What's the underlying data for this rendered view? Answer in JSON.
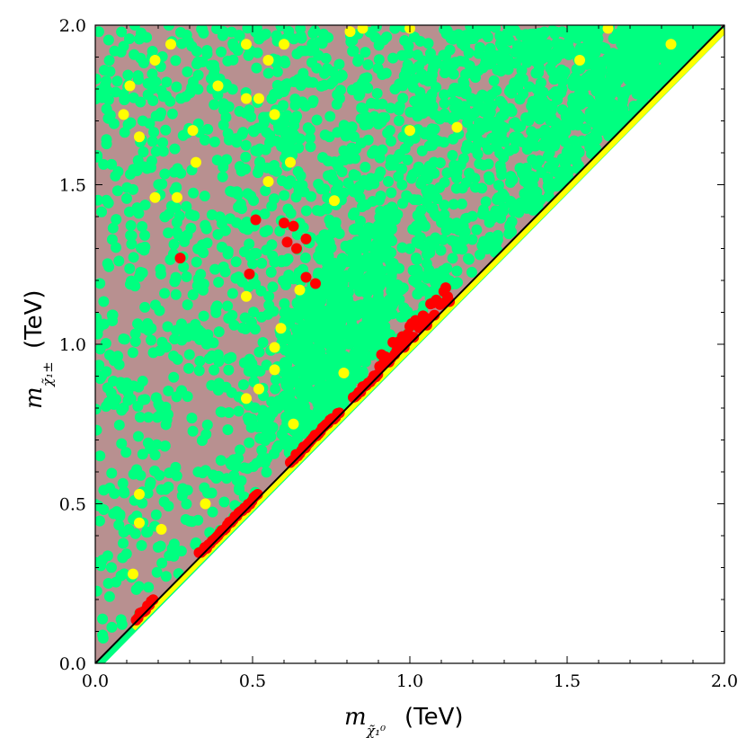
{
  "chart_data": {
    "type": "scatter",
    "title": "",
    "xlabel": {
      "symbol": "m",
      "subscript": "χ̃₁⁰",
      "unit": "(TeV)"
    },
    "ylabel": {
      "symbol": "m",
      "subscript": "χ̃₁±",
      "unit": "(TeV)"
    },
    "xlim": [
      0.0,
      2.0
    ],
    "ylim": [
      0.0,
      2.0
    ],
    "xticks": [
      "0.0",
      "0.5",
      "1.0",
      "1.5",
      "2.0"
    ],
    "yticks": [
      "0.0",
      "0.5",
      "1.0",
      "1.5",
      "2.0"
    ],
    "grid": false,
    "legend": "none",
    "colors": {
      "background_band": "#b89090",
      "allowed_points": "#00ff80",
      "yellow_points": "#ffff00",
      "red_points": "#ff0000",
      "diagonal_line": "#000000"
    },
    "diagonal": {
      "x": [
        0.0,
        2.0
      ],
      "y": [
        0.0,
        2.0
      ]
    },
    "series": [
      {
        "name": "red points (off-diagonal)",
        "color": "#ff0000",
        "points": [
          [
            0.27,
            1.27
          ],
          [
            0.51,
            1.39
          ],
          [
            0.49,
            1.22
          ],
          [
            0.6,
            1.38
          ],
          [
            0.63,
            1.37
          ],
          [
            0.61,
            1.32
          ],
          [
            0.67,
            1.33
          ],
          [
            0.64,
            1.3
          ],
          [
            0.67,
            1.21
          ],
          [
            0.7,
            1.19
          ]
        ]
      },
      {
        "name": "yellow points (off-diagonal)",
        "color": "#ffff00",
        "points": [
          [
            0.24,
            1.94
          ],
          [
            0.48,
            1.94
          ],
          [
            0.55,
            1.89
          ],
          [
            0.6,
            1.94
          ],
          [
            0.85,
            1.99
          ],
          [
            0.81,
            1.98
          ],
          [
            1.0,
            1.99
          ],
          [
            1.63,
            1.99
          ],
          [
            1.83,
            1.94
          ],
          [
            0.19,
            1.89
          ],
          [
            0.11,
            1.81
          ],
          [
            0.39,
            1.81
          ],
          [
            0.48,
            1.77
          ],
          [
            0.52,
            1.77
          ],
          [
            0.09,
            1.72
          ],
          [
            0.57,
            1.72
          ],
          [
            0.31,
            1.67
          ],
          [
            1.0,
            1.67
          ],
          [
            1.15,
            1.68
          ],
          [
            0.14,
            1.65
          ],
          [
            0.32,
            1.57
          ],
          [
            0.62,
            1.57
          ],
          [
            1.54,
            1.89
          ],
          [
            0.55,
            1.51
          ],
          [
            0.76,
            1.45
          ],
          [
            0.19,
            1.46
          ],
          [
            0.26,
            1.46
          ],
          [
            0.65,
            1.17
          ],
          [
            0.48,
            1.15
          ],
          [
            0.59,
            1.05
          ],
          [
            0.57,
            0.99
          ],
          [
            0.79,
            0.91
          ],
          [
            0.57,
            0.92
          ],
          [
            0.48,
            0.83
          ],
          [
            0.52,
            0.86
          ],
          [
            0.63,
            0.75
          ],
          [
            0.14,
            0.53
          ],
          [
            0.35,
            0.5
          ],
          [
            0.14,
            0.44
          ],
          [
            0.21,
            0.42
          ],
          [
            0.12,
            0.28
          ]
        ]
      },
      {
        "name": "red band (near-diagonal)",
        "color": "#ff0000",
        "segments": [
          [
            0.13,
            0.19
          ],
          [
            0.33,
            0.52
          ],
          [
            0.62,
            0.78
          ],
          [
            0.82,
            1.13
          ]
        ]
      }
    ]
  }
}
